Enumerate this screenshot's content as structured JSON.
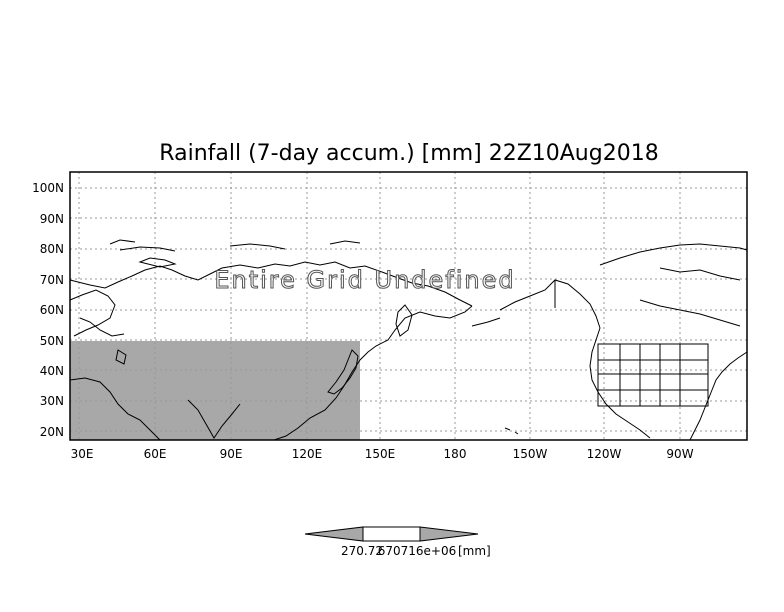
{
  "map": {
    "title": "Rainfall (7-day accum.) [mm] 22Z10Aug2018",
    "overlay_text": "Entire Grid Undefined",
    "lat_labels": [
      "20N",
      "30N",
      "40N",
      "50N",
      "60N",
      "70N",
      "80N",
      "90N",
      "100N"
    ],
    "lon_labels": [
      "30E",
      "60E",
      "90E",
      "120E",
      "150E",
      "180",
      "150W",
      "120W",
      "90W"
    ],
    "colors": {
      "shaded_region": "#a8a8a8",
      "grid_lines": "#999999",
      "coastline": "#000000",
      "frame": "#000000"
    }
  },
  "colorbar": {
    "tick_label_1": "270.72",
    "tick_label_2": "670716e+06",
    "unit_label": "[mm]",
    "fill_color": "#a8a8a8"
  }
}
